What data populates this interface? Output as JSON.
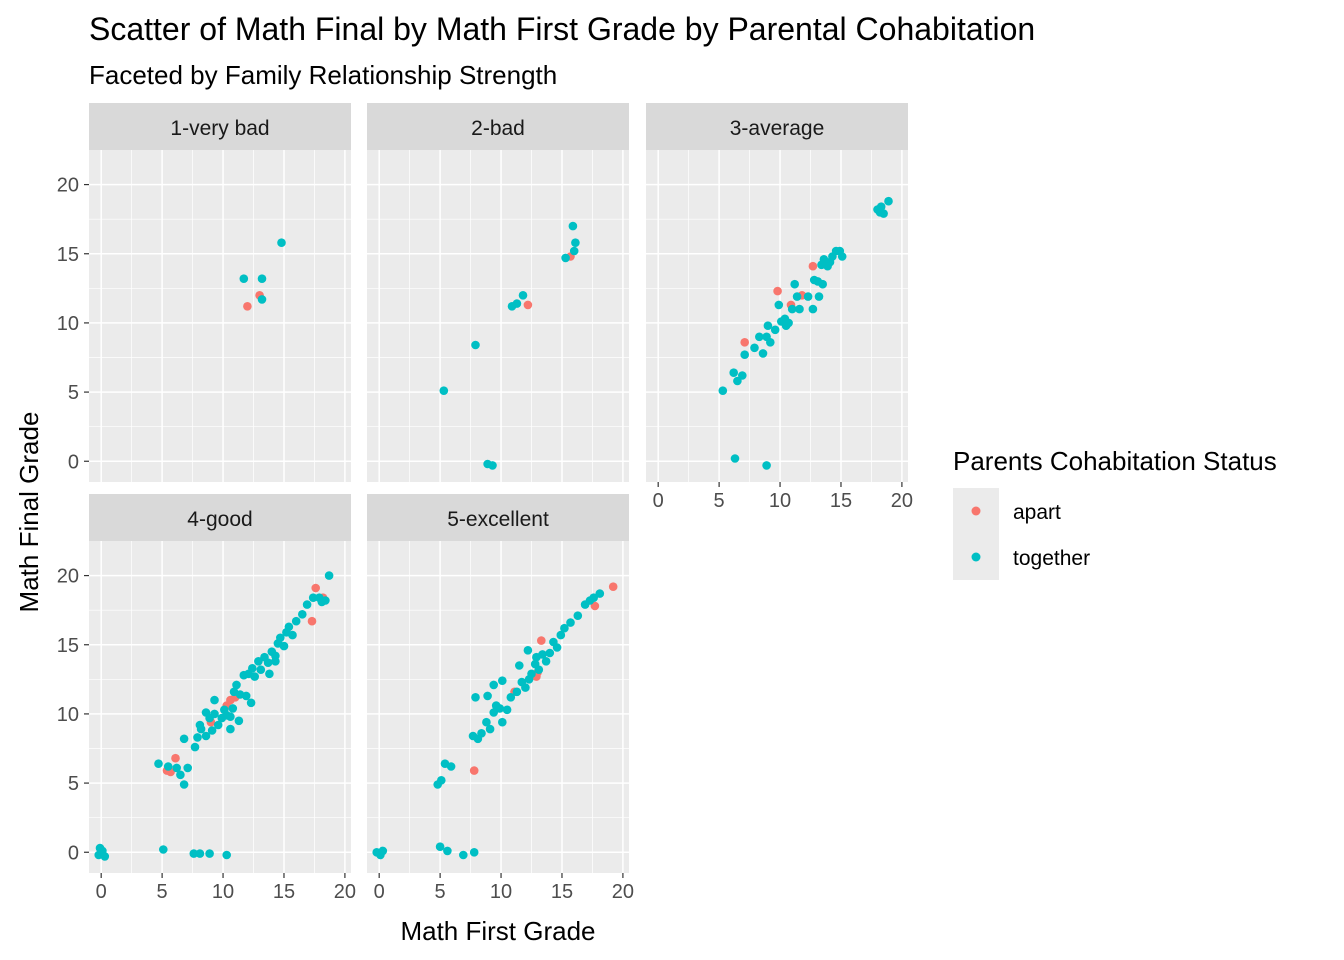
{
  "chart_data": {
    "type": "scatter",
    "title": "Scatter of Math Final by Math First Grade by Parental Cohabitation",
    "subtitle": "Faceted by Family Relationship Strength",
    "xlabel": "Math First Grade",
    "ylabel": "Math Final Grade",
    "xlim": [
      -1,
      20.5
    ],
    "ylim": [
      -1.5,
      22.5
    ],
    "xticks": [
      0,
      5,
      10,
      15,
      20
    ],
    "yticks": [
      0,
      5,
      10,
      15,
      20
    ],
    "grid": true,
    "legend": {
      "title": "Parents Cohabitation Status",
      "position": "right",
      "entries": [
        {
          "label": "apart",
          "color": "#F8766D"
        },
        {
          "label": "together",
          "color": "#00BFC4"
        }
      ]
    },
    "facets": [
      {
        "label": "1-very bad",
        "apart": [
          [
            12,
            11.2
          ],
          [
            13,
            12
          ]
        ],
        "together": [
          [
            11.7,
            13.2
          ],
          [
            13.2,
            13.2
          ],
          [
            13.2,
            11.7
          ],
          [
            14.8,
            15.8
          ]
        ]
      },
      {
        "label": "2-bad",
        "apart": [
          [
            12.2,
            11.3
          ],
          [
            15.7,
            14.8
          ]
        ],
        "together": [
          [
            5.3,
            5.1
          ],
          [
            7.9,
            8.4
          ],
          [
            8.9,
            -0.2
          ],
          [
            9.3,
            -0.3
          ],
          [
            10.9,
            11.2
          ],
          [
            11.3,
            11.4
          ],
          [
            11.8,
            12
          ],
          [
            15.3,
            14.7
          ],
          [
            16,
            15.2
          ],
          [
            16.1,
            15.8
          ],
          [
            15.9,
            17
          ]
        ]
      },
      {
        "label": "3-average",
        "apart": [
          [
            7.1,
            8.6
          ],
          [
            9.8,
            12.3
          ],
          [
            10.9,
            11.3
          ],
          [
            11.8,
            12
          ],
          [
            12.7,
            14.1
          ]
        ],
        "together": [
          [
            5.3,
            5.1
          ],
          [
            6.2,
            6.4
          ],
          [
            6.5,
            5.8
          ],
          [
            6.9,
            6.2
          ],
          [
            6.3,
            0.2
          ],
          [
            8.9,
            -0.3
          ],
          [
            7.1,
            7.7
          ],
          [
            7.9,
            8.2
          ],
          [
            8.3,
            9
          ],
          [
            8.6,
            7.8
          ],
          [
            8.9,
            9
          ],
          [
            9.2,
            8.6
          ],
          [
            9,
            9.8
          ],
          [
            9.6,
            9.5
          ],
          [
            10.1,
            10.1
          ],
          [
            10.4,
            10.3
          ],
          [
            10.5,
            9.8
          ],
          [
            10.7,
            10
          ],
          [
            9.9,
            11.3
          ],
          [
            11,
            11
          ],
          [
            11.2,
            12.8
          ],
          [
            11.4,
            11.9
          ],
          [
            11.6,
            11
          ],
          [
            12.3,
            11.9
          ],
          [
            12.7,
            11
          ],
          [
            13.1,
            13
          ],
          [
            13.4,
            14.2
          ],
          [
            13.6,
            14.6
          ],
          [
            13.9,
            14.1
          ],
          [
            14.1,
            14.4
          ],
          [
            14.3,
            14.8
          ],
          [
            14.6,
            15.2
          ],
          [
            14.9,
            15.2
          ],
          [
            15.1,
            14.8
          ],
          [
            13.5,
            12.8
          ],
          [
            12.8,
            13.1
          ],
          [
            18,
            18.2
          ],
          [
            18.2,
            18
          ],
          [
            18.5,
            17.9
          ],
          [
            18.9,
            18.8
          ],
          [
            18.3,
            18.4
          ],
          [
            13.2,
            11.9
          ]
        ]
      },
      {
        "label": "4-good",
        "apart": [
          [
            5.4,
            5.9
          ],
          [
            5.7,
            5.8
          ],
          [
            6.1,
            6.8
          ],
          [
            9,
            9.4
          ],
          [
            10.3,
            10.6
          ],
          [
            10.6,
            11
          ],
          [
            11,
            11.2
          ],
          [
            17.3,
            16.7
          ],
          [
            17.6,
            19.1
          ],
          [
            18.2,
            18.4
          ]
        ],
        "together": [
          [
            4.7,
            6.4
          ],
          [
            5.5,
            6.2
          ],
          [
            6.2,
            6.1
          ],
          [
            6.5,
            5.6
          ],
          [
            6.8,
            4.9
          ],
          [
            7.1,
            6.1
          ],
          [
            6.8,
            8.2
          ],
          [
            7.7,
            7.6
          ],
          [
            7.9,
            8.3
          ],
          [
            8.2,
            8.9
          ],
          [
            8.6,
            8.4
          ],
          [
            8.9,
            9.7
          ],
          [
            9.1,
            8.8
          ],
          [
            9.3,
            10
          ],
          [
            9.6,
            9.2
          ],
          [
            9.9,
            9.7
          ],
          [
            10.1,
            10.3
          ],
          [
            10.3,
            9.9
          ],
          [
            10.6,
            9.8
          ],
          [
            10.8,
            10.4
          ],
          [
            10.9,
            11.6
          ],
          [
            11.1,
            12.1
          ],
          [
            11.4,
            11.4
          ],
          [
            11.7,
            12.8
          ],
          [
            11.9,
            11.3
          ],
          [
            12.1,
            12.9
          ],
          [
            12.4,
            13.3
          ],
          [
            12.6,
            12.7
          ],
          [
            12.9,
            13.8
          ],
          [
            13.1,
            13.2
          ],
          [
            13.4,
            14.1
          ],
          [
            13.7,
            13.7
          ],
          [
            14,
            14.5
          ],
          [
            14.3,
            14.2
          ],
          [
            14.5,
            15.1
          ],
          [
            14.7,
            15.5
          ],
          [
            15,
            14.9
          ],
          [
            15.2,
            15.9
          ],
          [
            15.4,
            16.3
          ],
          [
            15.7,
            15.7
          ],
          [
            16,
            16.7
          ],
          [
            16.5,
            17.2
          ],
          [
            16.9,
            17.9
          ],
          [
            17.4,
            18.4
          ],
          [
            17.9,
            18.4
          ],
          [
            18.4,
            18.2
          ],
          [
            18.7,
            20
          ],
          [
            10.6,
            8.9
          ],
          [
            11.3,
            9.5
          ],
          [
            8.1,
            9.2
          ],
          [
            8.6,
            10.1
          ],
          [
            9.3,
            11
          ],
          [
            12.3,
            10.8
          ],
          [
            13.8,
            12.9
          ],
          [
            14.3,
            13.8
          ],
          [
            -0.2,
            -0.2
          ],
          [
            0.1,
            0.1
          ],
          [
            0.3,
            -0.3
          ],
          [
            -0.1,
            0.3
          ],
          [
            5.1,
            0.2
          ],
          [
            7.6,
            -0.1
          ],
          [
            8.1,
            -0.1
          ],
          [
            8.9,
            -0.1
          ],
          [
            10.3,
            -0.2
          ],
          [
            18.1,
            18.1
          ]
        ]
      },
      {
        "label": "5-excellent",
        "apart": [
          [
            7.8,
            5.9
          ],
          [
            11.1,
            11.6
          ],
          [
            12.9,
            12.7
          ],
          [
            13,
            13
          ],
          [
            13.3,
            15.3
          ],
          [
            17.7,
            17.8
          ],
          [
            19.2,
            19.2
          ]
        ],
        "together": [
          [
            4.8,
            4.9
          ],
          [
            5.1,
            5.2
          ],
          [
            5.4,
            6.4
          ],
          [
            5.9,
            6.2
          ],
          [
            7.7,
            8.4
          ],
          [
            8.1,
            8.2
          ],
          [
            8.4,
            8.6
          ],
          [
            8.8,
            9.4
          ],
          [
            9.1,
            8.9
          ],
          [
            9.4,
            10.1
          ],
          [
            9.6,
            10.6
          ],
          [
            9.9,
            10.4
          ],
          [
            10.1,
            9.4
          ],
          [
            10.5,
            10.3
          ],
          [
            10.8,
            11.2
          ],
          [
            11.3,
            11.6
          ],
          [
            11.7,
            12.3
          ],
          [
            12,
            11.9
          ],
          [
            12.3,
            12.5
          ],
          [
            12.5,
            12.9
          ],
          [
            12.8,
            13.6
          ],
          [
            13.1,
            13.2
          ],
          [
            13.4,
            14.3
          ],
          [
            13.7,
            13.8
          ],
          [
            14,
            14.4
          ],
          [
            14.3,
            15.2
          ],
          [
            14.6,
            14.8
          ],
          [
            14.9,
            15.7
          ],
          [
            15.2,
            16.2
          ],
          [
            15.7,
            16.6
          ],
          [
            16.3,
            17.1
          ],
          [
            16.9,
            17.9
          ],
          [
            17.3,
            18.2
          ],
          [
            17.6,
            18.4
          ],
          [
            18.1,
            18.7
          ],
          [
            7.9,
            11.2
          ],
          [
            8.9,
            11.3
          ],
          [
            9.4,
            12.1
          ],
          [
            10.1,
            12.4
          ],
          [
            12.2,
            14.6
          ],
          [
            12.9,
            14.1
          ],
          [
            11.5,
            13.5
          ],
          [
            -0.2,
            0
          ],
          [
            0.1,
            -0.2
          ],
          [
            0.3,
            0.1
          ],
          [
            5,
            0.4
          ],
          [
            5.6,
            0.1
          ],
          [
            6.9,
            -0.2
          ],
          [
            7.8,
            0
          ]
        ]
      }
    ]
  }
}
